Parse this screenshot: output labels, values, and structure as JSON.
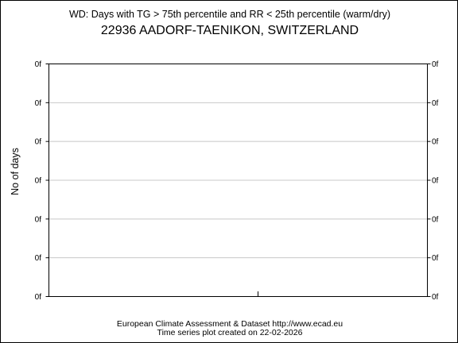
{
  "chart_data": {
    "type": "bar",
    "title": "WD: Days with TG > 75th percentile and RR < 25th percentile (warm/dry)",
    "subtitle": "22936 AADORF-TAENIKON, SWITZERLAND",
    "xlabel": "",
    "ylabel": "No of days",
    "categories": [],
    "values": [],
    "ylim": [
      0,
      6
    ],
    "ytick_labels": [
      "0f",
      "0f",
      "0f",
      "0f",
      "0f",
      "0f",
      "0f"
    ],
    "grid": true,
    "legend": "none"
  },
  "footer": {
    "line1": "European Climate Assessment & Dataset  http://www.ecad.eu",
    "line2": "Time series plot created on 22-02-2026"
  },
  "colors": {
    "axis": "#000000",
    "grid": "#c8c8c8",
    "background": "#ffffff"
  }
}
